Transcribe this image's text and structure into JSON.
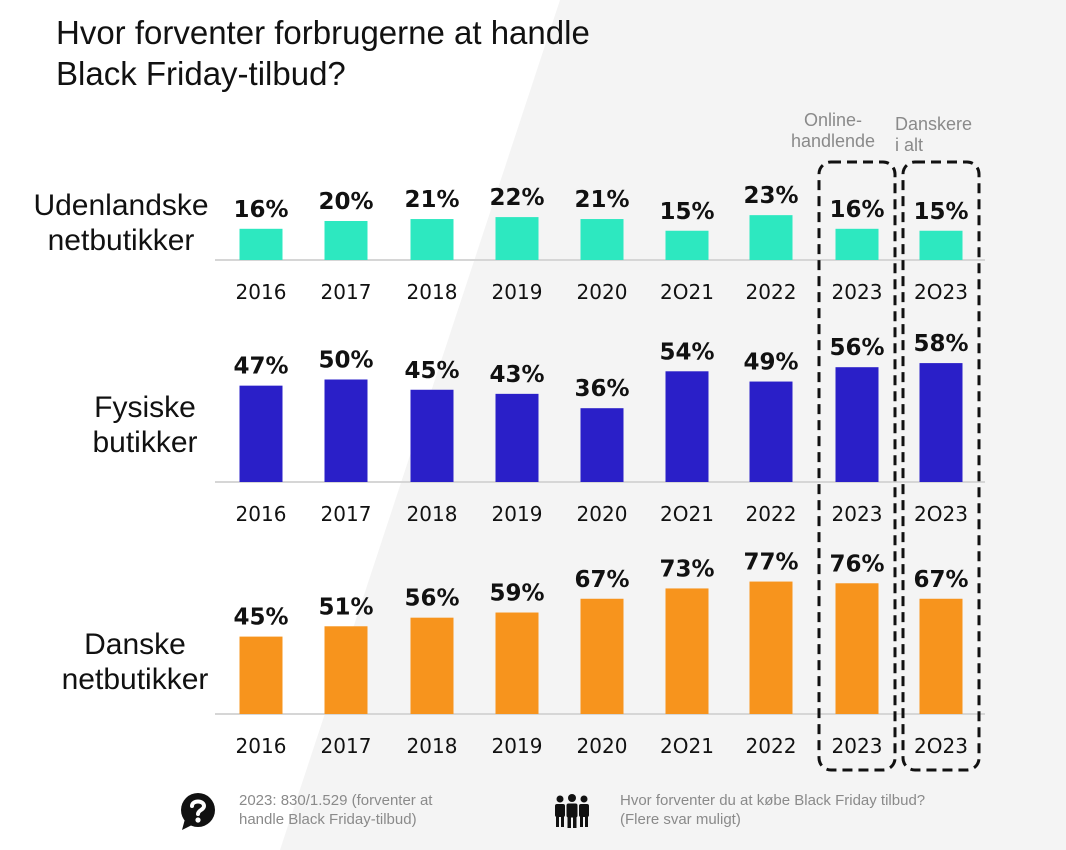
{
  "title_lines": [
    "Hvor forventer forbrugerne at handle",
    "Black Friday-tilbud?"
  ],
  "column_headers": {
    "online": [
      "Online-",
      "handlende"
    ],
    "total": [
      "Danskere",
      "i alt"
    ]
  },
  "chart_data": {
    "type": "bar",
    "title": "Hvor forventer forbrugerne at handle Black Friday-tilbud?",
    "value_unit": "%",
    "categories": [
      "2016",
      "2017",
      "2018",
      "2019",
      "2020",
      "2O21",
      "2022",
      "2023",
      "2O23"
    ],
    "highlighted_groups": [
      {
        "label": "Online-handlende",
        "category_index": 7
      },
      {
        "label": "Danskere i alt",
        "category_index": 8
      }
    ],
    "series": [
      {
        "name": "Udenlandske netbutikker",
        "label_lines": [
          "Udenlandske",
          "netbutikker"
        ],
        "color": "#2de8c0",
        "values": [
          16,
          20,
          21,
          22,
          21,
          15,
          23,
          16,
          15
        ]
      },
      {
        "name": "Fysiske butikker",
        "label_lines": [
          "Fysiske",
          "butikker"
        ],
        "color": "#2a1fc8",
        "values": [
          47,
          50,
          45,
          43,
          36,
          54,
          49,
          56,
          58
        ]
      },
      {
        "name": "Danske netbutikker",
        "label_lines": [
          "Danske",
          "netbutikker"
        ],
        "color": "#f7941d",
        "values": [
          45,
          51,
          56,
          59,
          67,
          73,
          77,
          76,
          67
        ]
      }
    ]
  },
  "footer": {
    "base_lines": [
      "2023: 830/1.529 (forventer at",
      "handle Black Friday-tilbud)"
    ],
    "question_lines": [
      "Hvor forventer du at købe Black Friday tilbud?",
      "(Flere svar muligt)"
    ],
    "base_icon": "question-speech-bubble-icon",
    "question_icon": "people-group-icon"
  }
}
